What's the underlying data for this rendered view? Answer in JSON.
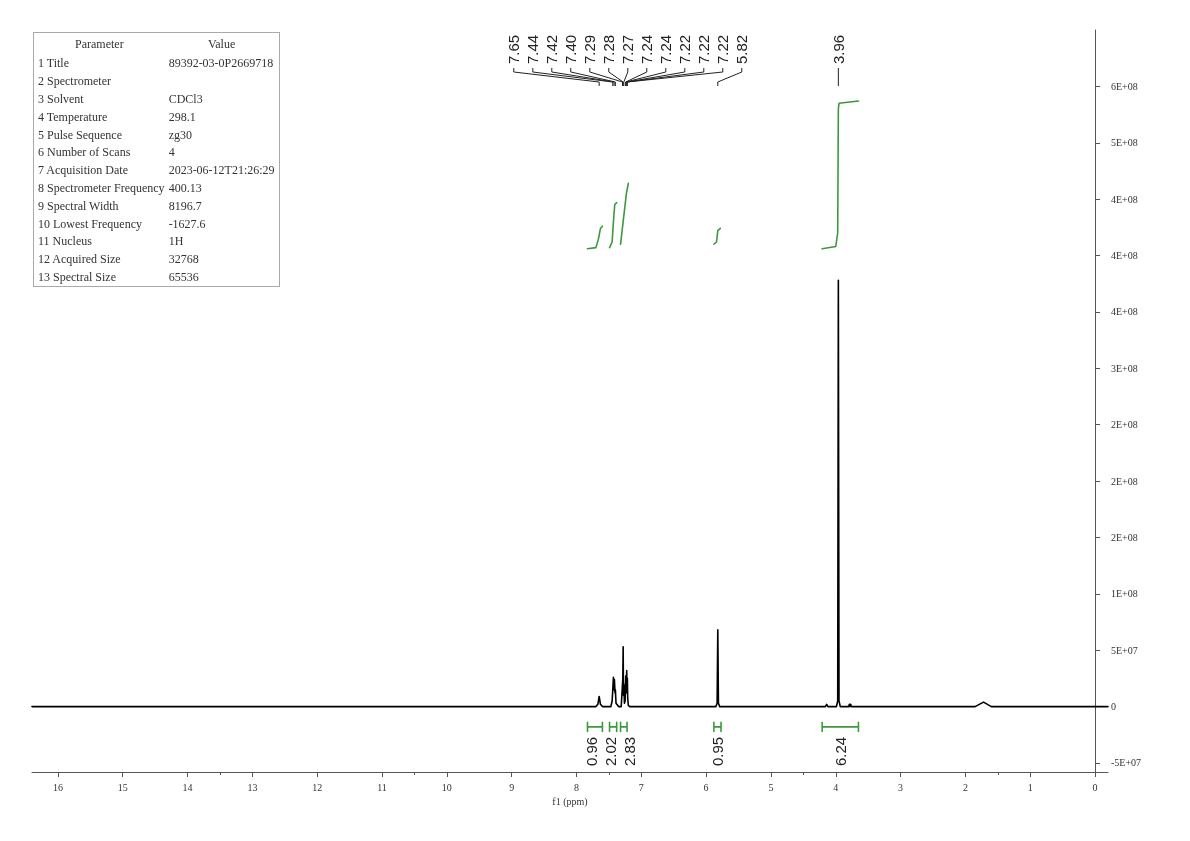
{
  "chart_data": [
    {
      "type": "line",
      "xlabel": "f1 (ppm)",
      "xlim": [
        16.4,
        -0.2
      ],
      "xticks": [
        16,
        15,
        14,
        13,
        12,
        11,
        10,
        9,
        8,
        7,
        6,
        5,
        4,
        3,
        2,
        1,
        0
      ],
      "ylim": [
        -58000000,
        600000000
      ],
      "yticks": [
        {
          "value": -50000000,
          "label": "-5E+07"
        },
        {
          "value": 0,
          "label": "0"
        },
        {
          "value": 50000000,
          "label": "5E+07"
        },
        {
          "value": 100000000,
          "label": "1E+08"
        },
        {
          "value": 150000000,
          "label": "2E+08"
        },
        {
          "value": 200000000,
          "label": "2E+08"
        },
        {
          "value": 250000000,
          "label": "2E+08"
        },
        {
          "value": 300000000,
          "label": "3E+08"
        },
        {
          "value": 350000000,
          "label": "4E+08"
        },
        {
          "value": 400000000,
          "label": "4E+08"
        },
        {
          "value": 450000000,
          "label": "4E+08"
        },
        {
          "value": 500000000,
          "label": "5E+08"
        },
        {
          "value": 550000000,
          "label": "6E+08"
        }
      ],
      "grid": false,
      "marker": "none",
      "line_style": "solid",
      "series": [
        {
          "color": "#000000",
          "x": [
            16.4,
            8.0,
            7.7,
            7.67,
            7.65,
            7.63,
            7.6,
            7.47,
            7.45,
            7.44,
            7.43,
            7.42,
            7.415,
            7.405,
            7.4,
            7.39,
            7.35,
            7.31,
            7.295,
            7.285,
            7.28,
            7.275,
            7.27,
            7.26,
            7.25,
            7.24,
            7.235,
            7.225,
            7.22,
            7.215,
            7.21,
            7.2,
            7.18,
            5.85,
            5.83,
            5.82,
            5.81,
            5.79,
            4.16,
            4.14,
            4.12,
            3.99,
            3.97,
            3.96,
            3.95,
            3.93,
            3.8,
            3.79,
            3.78,
            3.77,
            3.76,
            1.85,
            1.72,
            1.6,
            -0.2
          ],
          "values": [
            0,
            0,
            0,
            2000000,
            9000000,
            2000000,
            0,
            0,
            5000000,
            15000000,
            26000000,
            15000000,
            24000000,
            12000000,
            15000000,
            3000000,
            0,
            0,
            15000000,
            25000000,
            53000000,
            10000000,
            20000000,
            3000000,
            5000000,
            27000000,
            12000000,
            32000000,
            15000000,
            25000000,
            8000000,
            1000000,
            0,
            0,
            3000000,
            68000000,
            3000000,
            0,
            0,
            2000000,
            0,
            0,
            5000000,
            378000000,
            5000000,
            0,
            0,
            2000000,
            0,
            2000000,
            0,
            0,
            4000000,
            0,
            0
          ]
        },
        {
          "color": "#3a9a3a",
          "x": [
            7.83,
            7.7,
            7.66,
            7.63,
            7.6
          ],
          "values": [
            406000000,
            407000000,
            415000000,
            424000000,
            426000000
          ]
        },
        {
          "color": "#3a9a3a",
          "x": [
            7.49,
            7.45,
            7.43,
            7.41,
            7.38
          ],
          "values": [
            407000000,
            412000000,
            430000000,
            445000000,
            447000000
          ]
        },
        {
          "color": "#3a9a3a",
          "x": [
            7.32,
            7.28,
            7.23,
            7.2
          ],
          "values": [
            410000000,
            430000000,
            455000000,
            464000000
          ]
        },
        {
          "color": "#3a9a3a",
          "x": [
            5.88,
            5.84,
            5.82,
            5.78
          ],
          "values": [
            410000000,
            412000000,
            422000000,
            424000000
          ]
        },
        {
          "color": "#3a9a3a",
          "x": [
            4.21,
            4.0,
            3.97,
            3.96,
            3.95,
            3.65
          ],
          "values": [
            406000000,
            408000000,
            420000000,
            530000000,
            535000000,
            537000000
          ]
        },
        {
          "color": "#3a9a3a",
          "x": [
            7.83,
            7.83,
            7.83,
            7.715,
            7.6,
            7.6,
            7.6
          ],
          "values": [
            -14000000,
            -22000000,
            -18000000,
            -18000000,
            -18000000,
            -14000000,
            -22000000
          ]
        },
        {
          "color": "#3a9a3a",
          "x": [
            7.49,
            7.49,
            7.49,
            7.435,
            7.38,
            7.38,
            7.38
          ],
          "values": [
            -14000000,
            -22000000,
            -18000000,
            -18000000,
            -18000000,
            -14000000,
            -22000000
          ]
        },
        {
          "color": "#3a9a3a",
          "x": [
            7.32,
            7.32,
            7.32,
            7.27,
            7.22,
            7.22,
            7.22
          ],
          "values": [
            -14000000,
            -22000000,
            -18000000,
            -18000000,
            -18000000,
            -14000000,
            -22000000
          ]
        },
        {
          "color": "#3a9a3a",
          "x": [
            5.88,
            5.88,
            5.88,
            5.825,
            5.77,
            5.77,
            5.77
          ],
          "values": [
            -14000000,
            -22000000,
            -18000000,
            -18000000,
            -18000000,
            -14000000,
            -22000000
          ]
        },
        {
          "color": "#3a9a3a",
          "x": [
            4.21,
            4.21,
            4.21,
            3.93,
            3.65,
            3.65,
            3.65
          ],
          "values": [
            -14000000,
            -22000000,
            -18000000,
            -18000000,
            -18000000,
            -14000000,
            -22000000
          ]
        }
      ],
      "annotations": [
        {
          "text": "7.65",
          "x": 7.65
        },
        {
          "text": "7.44",
          "x": 7.44
        },
        {
          "text": "7.42",
          "x": 7.42
        },
        {
          "text": "7.40",
          "x": 7.4
        },
        {
          "text": "7.29",
          "x": 7.29
        },
        {
          "text": "7.28",
          "x": 7.28
        },
        {
          "text": "7.27",
          "x": 7.27
        },
        {
          "text": "7.24",
          "x": 7.24
        },
        {
          "text": "7.24",
          "x": 7.24
        },
        {
          "text": "7.22",
          "x": 7.22
        },
        {
          "text": "7.22",
          "x": 7.22
        },
        {
          "text": "7.22",
          "x": 7.22
        },
        {
          "text": "5.82",
          "x": 5.82
        },
        {
          "text": "3.96",
          "x": 3.96
        },
        {
          "text": "0.96",
          "x": 7.715,
          "y": -18000000
        },
        {
          "text": "2.02",
          "x": 7.435,
          "y": -18000000
        },
        {
          "text": "2.83",
          "x": 7.27,
          "y": -18000000
        },
        {
          "text": "0.95",
          "x": 5.825,
          "y": -18000000
        },
        {
          "text": "6.24",
          "x": 3.93,
          "y": -18000000
        }
      ]
    },
    {
      "type": "other",
      "annotations": [
        "Parameter",
        "Value"
      ],
      "categories": [
        "1 Title",
        "2 Spectrometer",
        "3 Solvent",
        "4 Temperature",
        "5 Pulse Sequence",
        "6 Number of Scans",
        "7 Acquisition Date",
        "8 Spectrometer Frequency",
        "9 Spectral Width",
        "10 Lowest Frequency",
        "11 Nucleus",
        "12 Acquired Size",
        "13 Spectral Size"
      ],
      "value_labels": [
        "89392-03-0P2669718",
        null,
        "CDCl3",
        "298.1",
        "zg30",
        "4",
        "2023-06-12T21:26:29",
        "400.13",
        "8196.7",
        "-1627.6",
        "1H",
        "32768",
        "65536"
      ]
    }
  ]
}
